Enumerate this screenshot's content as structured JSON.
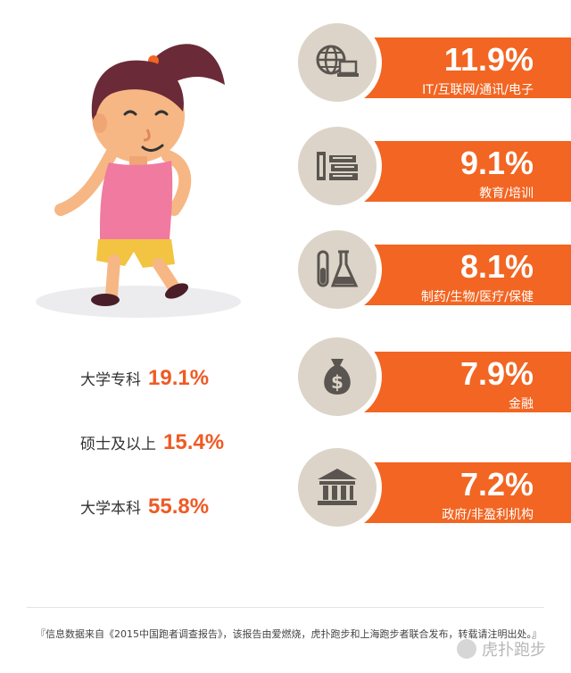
{
  "education": [
    {
      "label": "大学专科",
      "value": "19.1%"
    },
    {
      "label": "硕士及以上",
      "value": "15.4%"
    },
    {
      "label": "大学本科",
      "value": "55.8%"
    }
  ],
  "industries": [
    {
      "name": "IT/互联网/通讯/电子",
      "value": "11.9%",
      "icon": "globe-laptop-icon"
    },
    {
      "name": "教育/培训",
      "value": "9.1%",
      "icon": "books-icon"
    },
    {
      "name": "制药/生物/医疗/保健",
      "value": "8.1%",
      "icon": "lab-flask-icon"
    },
    {
      "name": "金融",
      "value": "7.9%",
      "icon": "money-bag-icon"
    },
    {
      "name": "政府/非盈利机构",
      "value": "7.2%",
      "icon": "government-building-icon"
    }
  ],
  "footer": {
    "source": "『信息数据来自《2015中国跑者调查报告》，该报告由爱燃烧，虎扑跑步和上海跑步者联合发布，转载请注明出处。』"
  },
  "watermark": "虎扑跑步",
  "colors": {
    "accent": "#f26522",
    "circle": "#dcd4c8",
    "icon": "#5a5550"
  }
}
